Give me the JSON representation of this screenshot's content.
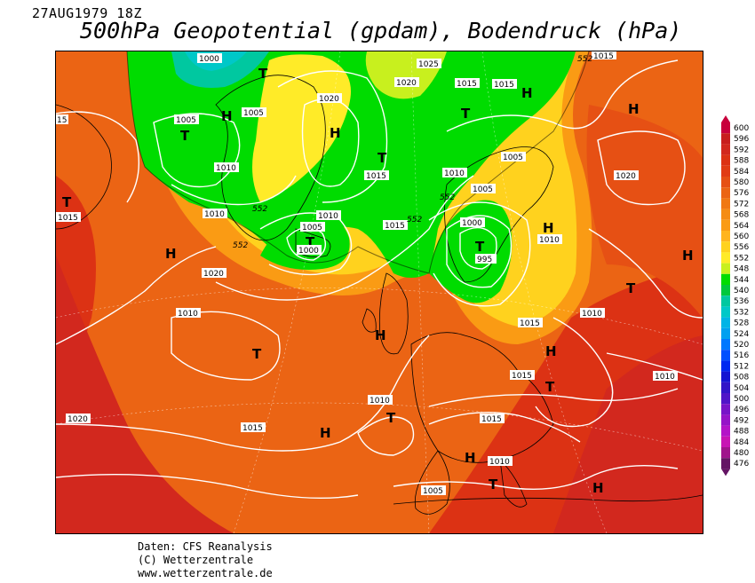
{
  "header": {
    "date": "27AUG1979 18Z",
    "title": "500hPa Geopotential (gpdam), Bodendruck (hPa)"
  },
  "credits": {
    "line1": "Daten: CFS Reanalysis",
    "line2": "(C) Wetterzentrale",
    "line3": "www.wetterzentrale.de"
  },
  "legend": {
    "values": [
      "600",
      "596",
      "592",
      "588",
      "584",
      "580",
      "576",
      "572",
      "568",
      "564",
      "560",
      "556",
      "552",
      "548",
      "544",
      "540",
      "536",
      "532",
      "528",
      "524",
      "520",
      "516",
      "512",
      "508",
      "504",
      "500",
      "496",
      "492",
      "488",
      "484",
      "480",
      "476"
    ],
    "colors": [
      "#c8003c",
      "#c81e1e",
      "#d2281e",
      "#dc3214",
      "#e13c14",
      "#e65014",
      "#eb6414",
      "#f07814",
      "#f58c14",
      "#fa9b14",
      "#ffb41e",
      "#ffd21e",
      "#ffeb28",
      "#c8f01e",
      "#00dc00",
      "#00c83c",
      "#00c8a0",
      "#00c8c8",
      "#00b4e6",
      "#00a0f0",
      "#0078ff",
      "#0050ff",
      "#0028f0",
      "#1414d2",
      "#3214c8",
      "#5014c8",
      "#7814c8",
      "#9614c8",
      "#b414c8",
      "#c814b4",
      "#a0148c",
      "#641464"
    ]
  },
  "map": {
    "high_label": "H",
    "low_label": "T",
    "contour_552": "552",
    "isobar_labels": [
      "995",
      "1000",
      "1005",
      "1010",
      "1015",
      "1020",
      "1025",
      "15"
    ]
  }
}
